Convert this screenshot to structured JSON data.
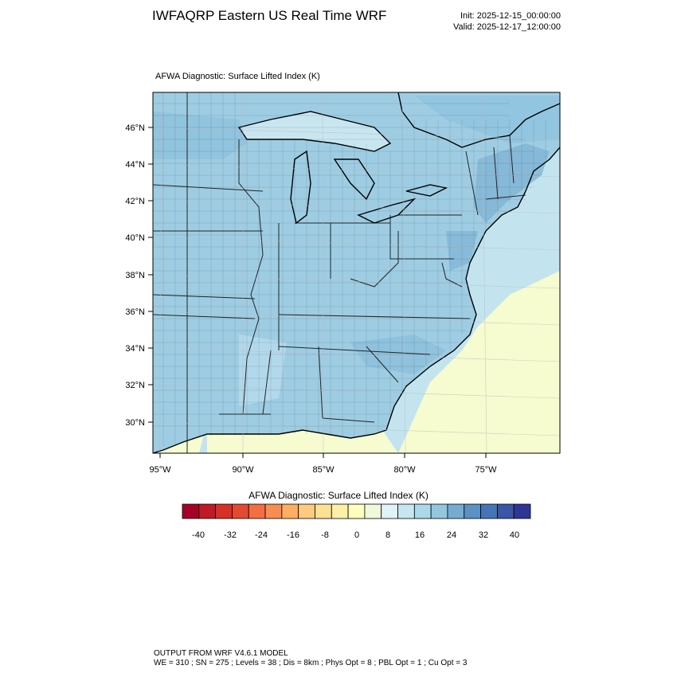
{
  "header": {
    "title": "IWFAQRP Eastern US Real Time WRF",
    "init": "Init: 2025-12-15_00:00:00",
    "valid": "Valid: 2025-12-17_12:00:00"
  },
  "map": {
    "subtitle": "AFWA Diagnostic: Surface Lifted Index   (K)",
    "lat_labels": [
      "46°N",
      "44°N",
      "42°N",
      "40°N",
      "38°N",
      "36°N",
      "34°N",
      "32°N",
      "30°N"
    ],
    "lon_labels": [
      "95°W",
      "90°W",
      "85°W",
      "80°W",
      "75°W"
    ],
    "colors": {
      "land_dominant": "#9ecde3",
      "ocean_north": "#c3e4ef",
      "ocean_south": "#f6fbd0",
      "positive_dark": "#5c98c6",
      "near_zero": "#ffffd2"
    }
  },
  "colorbar": {
    "title": "AFWA Diagnostic: Surface Lifted Index  (K)",
    "tick_labels": [
      "-40",
      "-32",
      "-24",
      "-16",
      "-8",
      "0",
      "8",
      "16",
      "24",
      "32",
      "40"
    ],
    "colors": [
      "#a50026",
      "#c01a27",
      "#d73027",
      "#e34a33",
      "#f46d43",
      "#f88d52",
      "#fdae61",
      "#fec980",
      "#fee090",
      "#fff0a8",
      "#ffffbf",
      "#f0f9d9",
      "#e0f3f8",
      "#c7e6f0",
      "#abd9e9",
      "#93c7e0",
      "#74add1",
      "#5b91c3",
      "#4575b4",
      "#3b56a5",
      "#313695"
    ]
  },
  "footer": {
    "line1": "OUTPUT FROM WRF V4.6.1 MODEL",
    "line2": "WE = 310 ; SN = 275 ; Levels = 38 ; Dis = 8km ; Phys Opt = 8 ; PBL Opt = 1 ; Cu Opt = 3"
  }
}
